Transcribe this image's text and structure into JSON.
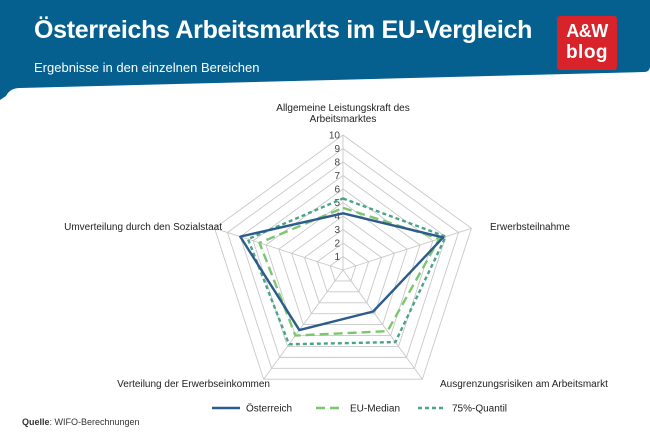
{
  "header": {
    "title": "Österreichs Arbeitsmarkts im EU-Vergleich",
    "subtitle": "Ergebnisse in den einzelnen Bereichen",
    "logo_line1": "A&W",
    "logo_line2": "blog",
    "background_color": "#05608f",
    "logo_color": "#d8232a"
  },
  "chart_data": {
    "type": "radar",
    "title": "",
    "axes": [
      "Allgemeine Leistungskraft des Arbeitsmarktes",
      "Erwerbsteilnahme",
      "Ausgrenzungsrisiken am Arbeitsmarkt",
      "Verteilung der Erwerbseinkommen",
      "Umverteilung durch den Sozialstaat"
    ],
    "axis_label_lines": [
      [
        "Allgemeine Leistungskraft des",
        "Arbeitsmarktes"
      ],
      [
        "Erwerbsteilnahme"
      ],
      [
        "Ausgrenzungsrisiken am Arbeitsmarkt"
      ],
      [
        "Verteilung der Erwerbseinkommen"
      ],
      [
        "Umverteilung durch den Sozialstaat"
      ]
    ],
    "range": [
      0,
      10
    ],
    "ticks": [
      "1",
      "2",
      "3",
      "4",
      "5",
      "6",
      "7",
      "8",
      "9",
      "10"
    ],
    "grid": true,
    "legend_position": "bottom",
    "series": [
      {
        "name": "Österreich",
        "values": [
          4.2,
          7.8,
          3.8,
          5.5,
          8.0
        ],
        "color": "#2d5b8c",
        "style": "solid"
      },
      {
        "name": "EU-Median",
        "values": [
          4.6,
          7.5,
          5.6,
          6.0,
          6.5
        ],
        "color": "#7cc66f",
        "style": "dashed"
      },
      {
        "name": "75%-Quantil",
        "values": [
          5.3,
          8.0,
          6.6,
          6.8,
          7.4
        ],
        "color": "#4da38a",
        "style": "dotted"
      }
    ]
  },
  "source": {
    "label": "Quelle",
    "text": ": WIFO-Berechnungen"
  }
}
